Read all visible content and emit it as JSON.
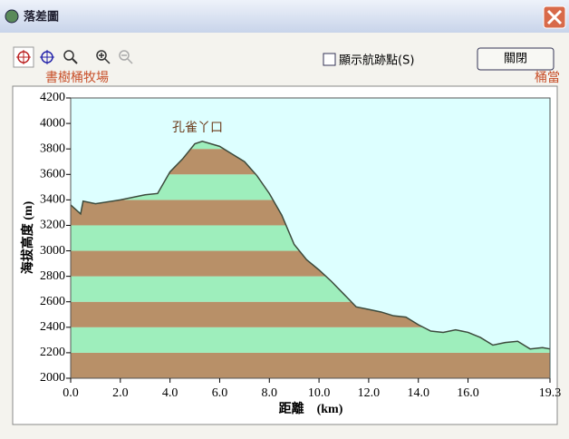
{
  "window": {
    "title": "落差圖",
    "checkbox": "顯示航跡點(S)",
    "button": "關閉",
    "start_label": "書樹桶牧場",
    "end_label": "桶當"
  },
  "chart_data": {
    "type": "area",
    "annotation": "孔雀丫口",
    "xlabel": "距離　(km)",
    "ylabel": "海拔高度 (m)",
    "x": [
      0.0,
      0.4,
      0.5,
      1.0,
      2.0,
      3.0,
      3.5,
      4.0,
      4.5,
      5.0,
      5.3,
      6.0,
      7.0,
      7.5,
      8.0,
      8.5,
      9.0,
      9.5,
      10.0,
      10.5,
      11.0,
      11.5,
      12.0,
      12.5,
      13.0,
      13.5,
      14.0,
      14.5,
      15.0,
      15.5,
      16.0,
      16.5,
      17.0,
      17.5,
      18.0,
      18.5,
      19.0,
      19.3
    ],
    "values": [
      3360,
      3290,
      3390,
      3370,
      3400,
      3440,
      3450,
      3620,
      3720,
      3840,
      3860,
      3820,
      3700,
      3590,
      3450,
      3280,
      3050,
      2930,
      2850,
      2760,
      2660,
      2560,
      2540,
      2520,
      2490,
      2480,
      2420,
      2370,
      2360,
      2380,
      2360,
      2320,
      2260,
      2280,
      2290,
      2230,
      2240,
      2230
    ],
    "xlim": [
      0,
      19.3
    ],
    "ylim": [
      2000,
      4200
    ],
    "xticks": [
      {
        "value": 0,
        "label": "0.0"
      },
      {
        "value": 2,
        "label": "2.0"
      },
      {
        "value": 4,
        "label": "4.0"
      },
      {
        "value": 6,
        "label": "6.0"
      },
      {
        "value": 8,
        "label": "8.0"
      },
      {
        "value": 10,
        "label": "10.0"
      },
      {
        "value": 12,
        "label": "12.0"
      },
      {
        "value": 14,
        "label": "14.0"
      },
      {
        "value": 16,
        "label": "16.0"
      },
      19.3
    ],
    "yticks": [
      2000,
      2200,
      2400,
      2600,
      2800,
      3000,
      3200,
      3400,
      3600,
      3800,
      4000,
      4200
    ],
    "line_color": "#3c4a3c",
    "band_colors": [
      "#b89068",
      "#9eeebc"
    ],
    "background": "#ddffff"
  }
}
